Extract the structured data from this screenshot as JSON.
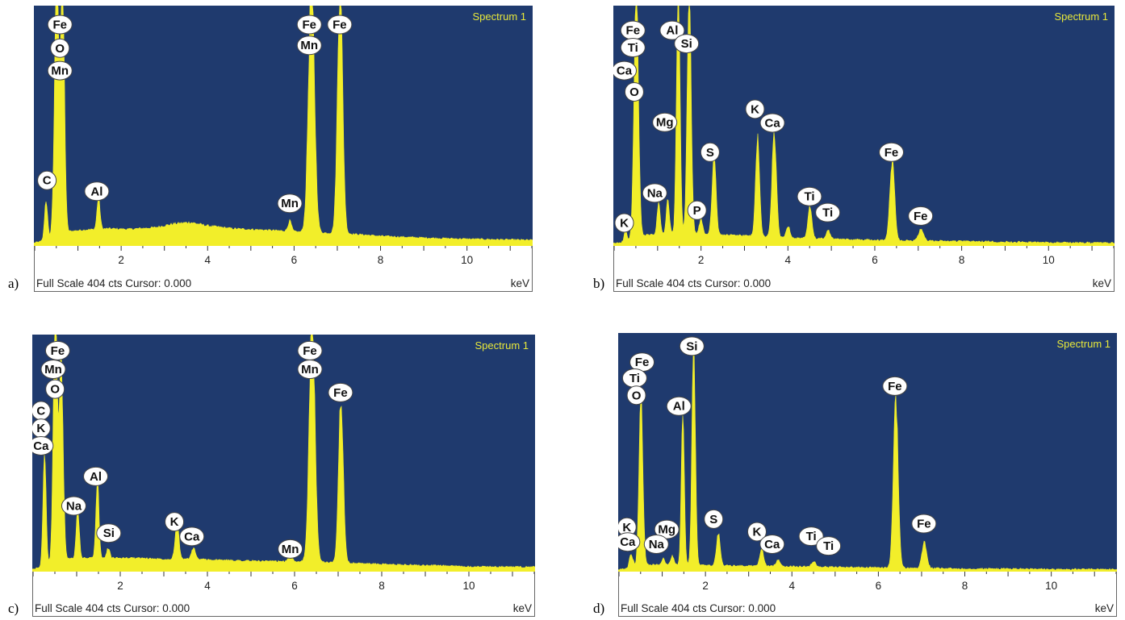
{
  "colors": {
    "plot_bg": "#1f3a6e",
    "spectrum": "#f2ee2a",
    "title": "#e8e83a"
  },
  "chart_data": [
    {
      "type": "area",
      "panel": "a)",
      "title": "Spectrum 1",
      "status": "Full Scale 404 cts Cursor: 0.000",
      "xlabel": "keV",
      "xlim": [
        0,
        11.5
      ],
      "ylim": [
        0,
        404
      ],
      "x_ticks": [
        2,
        4,
        6,
        8,
        10
      ],
      "background": [
        [
          0,
          5
        ],
        [
          0.3,
          10
        ],
        [
          0.5,
          22
        ],
        [
          0.9,
          26
        ],
        [
          1.2,
          28
        ],
        [
          1.7,
          30
        ],
        [
          2.2,
          29
        ],
        [
          2.8,
          32
        ],
        [
          3.2,
          38
        ],
        [
          3.6,
          41
        ],
        [
          4.0,
          35
        ],
        [
          4.6,
          30
        ],
        [
          5.2,
          28
        ],
        [
          5.8,
          26
        ],
        [
          6.2,
          24
        ],
        [
          7.3,
          21
        ],
        [
          8,
          17
        ],
        [
          9,
          14
        ],
        [
          10,
          12
        ],
        [
          11.5,
          10
        ]
      ],
      "peaks": [
        {
          "keV": 0.28,
          "counts": 70,
          "width": 0.035
        },
        {
          "keV": 0.525,
          "counts": 430,
          "width": 0.05
        },
        {
          "keV": 0.66,
          "counts": 430,
          "width": 0.045
        },
        {
          "keV": 1.49,
          "counts": 56,
          "width": 0.035
        },
        {
          "keV": 5.9,
          "counts": 18,
          "width": 0.04
        },
        {
          "keV": 6.4,
          "counts": 430,
          "width": 0.07
        },
        {
          "keV": 7.06,
          "counts": 430,
          "width": 0.06
        }
      ],
      "labels": [
        {
          "text": "Fe",
          "keV": 0.6,
          "counts": 385
        },
        {
          "text": "O",
          "keV": 0.6,
          "counts": 344
        },
        {
          "text": "Mn",
          "keV": 0.6,
          "counts": 305
        },
        {
          "text": "C",
          "keV": 0.3,
          "counts": 114
        },
        {
          "text": "Al",
          "keV": 1.45,
          "counts": 95
        },
        {
          "text": "Mn",
          "keV": 5.9,
          "counts": 74
        },
        {
          "text": "Fe",
          "keV": 6.35,
          "counts": 385
        },
        {
          "text": "Mn",
          "keV": 6.35,
          "counts": 349
        },
        {
          "text": "Fe",
          "keV": 7.05,
          "counts": 385
        }
      ]
    },
    {
      "type": "area",
      "panel": "b)",
      "title": "Spectrum 1",
      "status": "Full Scale 404 cts Cursor: 0.000",
      "xlabel": "keV",
      "xlim": [
        0,
        11.5
      ],
      "ylim": [
        0,
        404
      ],
      "x_ticks": [
        2,
        4,
        6,
        8,
        10
      ],
      "background": [
        [
          0,
          4
        ],
        [
          0.3,
          8
        ],
        [
          0.6,
          18
        ],
        [
          1.0,
          20
        ],
        [
          1.5,
          22
        ],
        [
          2.2,
          20
        ],
        [
          3,
          18
        ],
        [
          4,
          14
        ],
        [
          5,
          12
        ],
        [
          6,
          10
        ],
        [
          7,
          9
        ],
        [
          8,
          8
        ],
        [
          9,
          7
        ],
        [
          10,
          6
        ],
        [
          11.5,
          5
        ]
      ],
      "peaks": [
        {
          "keV": 0.28,
          "counts": 20,
          "width": 0.03
        },
        {
          "keV": 0.525,
          "counts": 430,
          "width": 0.05
        },
        {
          "keV": 1.04,
          "counts": 55,
          "width": 0.035
        },
        {
          "keV": 1.25,
          "counts": 60,
          "width": 0.035
        },
        {
          "keV": 1.49,
          "counts": 430,
          "width": 0.04
        },
        {
          "keV": 1.74,
          "counts": 430,
          "width": 0.045
        },
        {
          "keV": 2.01,
          "counts": 25,
          "width": 0.04
        },
        {
          "keV": 2.31,
          "counts": 140,
          "width": 0.045
        },
        {
          "keV": 3.31,
          "counts": 175,
          "width": 0.045
        },
        {
          "keV": 3.69,
          "counts": 185,
          "width": 0.05
        },
        {
          "keV": 4.01,
          "counts": 20,
          "width": 0.045
        },
        {
          "keV": 4.51,
          "counts": 55,
          "width": 0.045
        },
        {
          "keV": 4.93,
          "counts": 15,
          "width": 0.045
        },
        {
          "keV": 6.4,
          "counts": 140,
          "width": 0.055
        },
        {
          "keV": 7.06,
          "counts": 20,
          "width": 0.055
        }
      ],
      "labels": [
        {
          "text": "Fe",
          "keV": 0.45,
          "counts": 375
        },
        {
          "text": "Al",
          "keV": 1.35,
          "counts": 375
        },
        {
          "text": "Ti",
          "keV": 0.45,
          "counts": 345
        },
        {
          "text": "Si",
          "keV": 1.68,
          "counts": 352
        },
        {
          "text": "Ca",
          "keV": 0.25,
          "counts": 305
        },
        {
          "text": "O",
          "keV": 0.48,
          "counts": 268
        },
        {
          "text": "Mg",
          "keV": 1.18,
          "counts": 215
        },
        {
          "text": "K",
          "keV": 3.25,
          "counts": 238
        },
        {
          "text": "Ca",
          "keV": 3.65,
          "counts": 214
        },
        {
          "text": "S",
          "keV": 2.22,
          "counts": 163
        },
        {
          "text": "Fe",
          "keV": 6.38,
          "counts": 163
        },
        {
          "text": "Na",
          "keV": 0.95,
          "counts": 92
        },
        {
          "text": "Ti",
          "keV": 4.5,
          "counts": 86
        },
        {
          "text": "P",
          "keV": 1.92,
          "counts": 62
        },
        {
          "text": "Ti",
          "keV": 4.92,
          "counts": 58
        },
        {
          "text": "Fe",
          "keV": 7.05,
          "counts": 52
        },
        {
          "text": "K",
          "keV": 0.25,
          "counts": 40
        }
      ]
    },
    {
      "type": "area",
      "panel": "c)",
      "title": "Spectrum 1",
      "status": "Full Scale 404 cts Cursor: 0.000",
      "xlabel": "keV",
      "xlim": [
        0,
        11.5
      ],
      "ylim": [
        0,
        404
      ],
      "x_ticks": [
        2,
        4,
        6,
        8,
        10
      ],
      "background": [
        [
          0,
          4
        ],
        [
          0.3,
          10
        ],
        [
          0.6,
          22
        ],
        [
          1.2,
          24
        ],
        [
          1.8,
          24
        ],
        [
          2.4,
          24
        ],
        [
          3,
          22
        ],
        [
          3.6,
          22
        ],
        [
          4.5,
          20
        ],
        [
          5.5,
          18
        ],
        [
          6.2,
          18
        ],
        [
          7.3,
          15
        ],
        [
          8,
          13
        ],
        [
          9,
          11
        ],
        [
          10,
          9
        ],
        [
          11.5,
          8
        ]
      ],
      "peaks": [
        {
          "keV": 0.28,
          "counts": 210,
          "width": 0.035
        },
        {
          "keV": 0.525,
          "counts": 430,
          "width": 0.045
        },
        {
          "keV": 0.66,
          "counts": 360,
          "width": 0.045
        },
        {
          "keV": 1.04,
          "counts": 90,
          "width": 0.035
        },
        {
          "keV": 1.49,
          "counts": 140,
          "width": 0.035
        },
        {
          "keV": 1.74,
          "counts": 18,
          "width": 0.035
        },
        {
          "keV": 3.31,
          "counts": 62,
          "width": 0.045
        },
        {
          "keV": 3.69,
          "counts": 20,
          "width": 0.045
        },
        {
          "keV": 5.9,
          "counts": 12,
          "width": 0.04
        },
        {
          "keV": 6.4,
          "counts": 430,
          "width": 0.065
        },
        {
          "keV": 7.06,
          "counts": 290,
          "width": 0.055
        }
      ],
      "labels": [
        {
          "text": "Fe",
          "keV": 0.58,
          "counts": 390
        },
        {
          "text": "Mn",
          "keV": 0.48,
          "counts": 357
        },
        {
          "text": "O",
          "keV": 0.52,
          "counts": 322
        },
        {
          "text": "C",
          "keV": 0.2,
          "counts": 284
        },
        {
          "text": "K",
          "keV": 0.2,
          "counts": 253
        },
        {
          "text": "Ca",
          "keV": 0.2,
          "counts": 222
        },
        {
          "text": "Al",
          "keV": 1.45,
          "counts": 168
        },
        {
          "text": "Na",
          "keV": 0.95,
          "counts": 116
        },
        {
          "text": "Si",
          "keV": 1.75,
          "counts": 68
        },
        {
          "text": "K",
          "keV": 3.25,
          "counts": 88
        },
        {
          "text": "Ca",
          "keV": 3.65,
          "counts": 62
        },
        {
          "text": "Mn",
          "keV": 5.9,
          "counts": 40
        },
        {
          "text": "Fe",
          "keV": 6.35,
          "counts": 390
        },
        {
          "text": "Mn",
          "keV": 6.35,
          "counts": 357
        },
        {
          "text": "Fe",
          "keV": 7.05,
          "counts": 316
        }
      ]
    },
    {
      "type": "area",
      "panel": "d)",
      "title": "Spectrum 1",
      "status": "Full Scale 404 cts Cursor: 0.000",
      "xlabel": "keV",
      "xlim": [
        0,
        11.5
      ],
      "ylim": [
        0,
        404
      ],
      "x_ticks": [
        2,
        4,
        6,
        8,
        10
      ],
      "background": [
        [
          0,
          3
        ],
        [
          0.3,
          6
        ],
        [
          0.6,
          12
        ],
        [
          1.2,
          12
        ],
        [
          2,
          11
        ],
        [
          3,
          10
        ],
        [
          4,
          9
        ],
        [
          5,
          8
        ],
        [
          6,
          7
        ],
        [
          7,
          6
        ],
        [
          8,
          5
        ],
        [
          9,
          5
        ],
        [
          10,
          4
        ],
        [
          11.5,
          4
        ]
      ],
      "peaks": [
        {
          "keV": 0.28,
          "counts": 22,
          "width": 0.03
        },
        {
          "keV": 0.34,
          "counts": 12,
          "width": 0.03
        },
        {
          "keV": 0.525,
          "counts": 290,
          "width": 0.045
        },
        {
          "keV": 1.04,
          "counts": 12,
          "width": 0.035
        },
        {
          "keV": 1.25,
          "counts": 16,
          "width": 0.035
        },
        {
          "keV": 1.49,
          "counts": 260,
          "width": 0.035
        },
        {
          "keV": 1.74,
          "counts": 385,
          "width": 0.04
        },
        {
          "keV": 2.31,
          "counts": 55,
          "width": 0.045
        },
        {
          "keV": 3.31,
          "counts": 30,
          "width": 0.045
        },
        {
          "keV": 3.69,
          "counts": 12,
          "width": 0.045
        },
        {
          "keV": 4.51,
          "counts": 10,
          "width": 0.045
        },
        {
          "keV": 6.4,
          "counts": 300,
          "width": 0.055
        },
        {
          "keV": 7.06,
          "counts": 45,
          "width": 0.055
        }
      ],
      "labels": [
        {
          "text": "Si",
          "keV": 1.7,
          "counts": 395
        },
        {
          "text": "Fe",
          "keV": 0.55,
          "counts": 367
        },
        {
          "text": "Ti",
          "keV": 0.38,
          "counts": 339
        },
        {
          "text": "O",
          "keV": 0.42,
          "counts": 309
        },
        {
          "text": "Al",
          "keV": 1.4,
          "counts": 290
        },
        {
          "text": "Fe",
          "keV": 6.38,
          "counts": 325
        },
        {
          "text": "S",
          "keV": 2.2,
          "counts": 92
        },
        {
          "text": "K",
          "keV": 0.2,
          "counts": 78
        },
        {
          "text": "Mg",
          "keV": 1.12,
          "counts": 74
        },
        {
          "text": "Ca",
          "keV": 0.22,
          "counts": 52
        },
        {
          "text": "Na",
          "keV": 0.88,
          "counts": 48
        },
        {
          "text": "K",
          "keV": 3.2,
          "counts": 70
        },
        {
          "text": "Ca",
          "keV": 3.55,
          "counts": 48
        },
        {
          "text": "Ti",
          "keV": 4.45,
          "counts": 62
        },
        {
          "text": "Ti",
          "keV": 4.85,
          "counts": 45
        },
        {
          "text": "Fe",
          "keV": 7.05,
          "counts": 84
        }
      ]
    }
  ]
}
